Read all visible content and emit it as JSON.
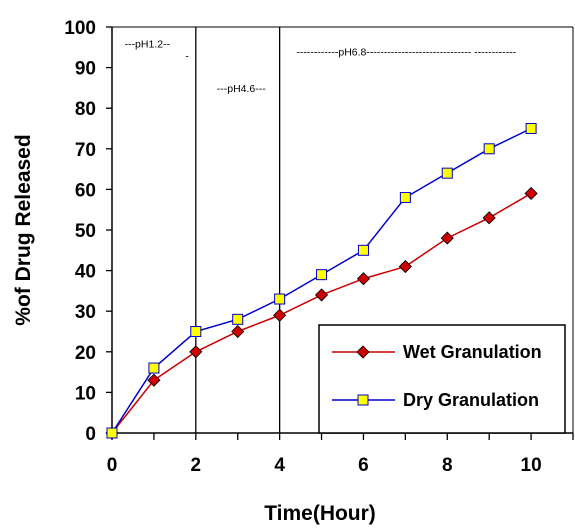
{
  "chart_data": {
    "type": "line",
    "xlabel": "Time(Hour)",
    "ylabel": "%of Drug Released",
    "xlim": [
      0,
      11
    ],
    "ylim": [
      0,
      100
    ],
    "xticks": [
      0,
      2,
      4,
      6,
      8,
      10
    ],
    "yticks": [
      0,
      10,
      20,
      30,
      40,
      50,
      60,
      70,
      80,
      90,
      100
    ],
    "legend_position": "bottom-right",
    "x": [
      0,
      1,
      2,
      3,
      4,
      5,
      6,
      7,
      8,
      9,
      10
    ],
    "series": [
      {
        "name": "Wet Granulation",
        "values": [
          0,
          13,
          20,
          25,
          29,
          34,
          38,
          41,
          48,
          53,
          59
        ],
        "color": "#cc0000",
        "marker": "diamond"
      },
      {
        "name": "Dry Granulation",
        "values": [
          0,
          16,
          25,
          28,
          33,
          39,
          45,
          58,
          64,
          70,
          75
        ],
        "color": "#0000cc",
        "marker": "square",
        "marker_fill": "#ffff00"
      }
    ],
    "phase_dividers": [
      2,
      4
    ],
    "annotations": [
      {
        "text": "---pH1.2--",
        "x": 0.3,
        "y": 95
      },
      {
        "text": "-",
        "x": 1.75,
        "y": 92
      },
      {
        "text": "---pH4.6---",
        "x": 2.5,
        "y": 84
      },
      {
        "text": "------------pH6.8------------------------------ ------------",
        "x": 4.4,
        "y": 93
      }
    ]
  }
}
